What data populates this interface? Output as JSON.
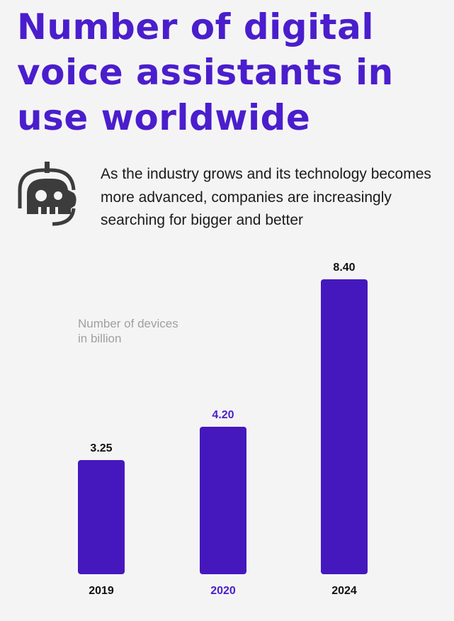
{
  "title": "Number of digital voice assistants in use worldwide",
  "subtitle": "As the industry grows and its technology becomes more advanced, companies are increasingly searching for bigger and better",
  "icon": "robot-head-icon",
  "chart_data": {
    "type": "bar",
    "unit_label": [
      "Number of devices",
      "in billion"
    ],
    "categories": [
      "2019",
      "2020",
      "2024"
    ],
    "values": [
      3.25,
      4.2,
      8.4
    ],
    "value_labels": [
      "3.25",
      "4.20",
      "8.40"
    ],
    "highlighted_category": "2020",
    "ylim": [
      0,
      8.4
    ],
    "grid": false,
    "colors": {
      "bar": "#4518be",
      "highlight_text": "#4a1ecc",
      "text": "#111111",
      "title": "#4a1ecc"
    }
  }
}
